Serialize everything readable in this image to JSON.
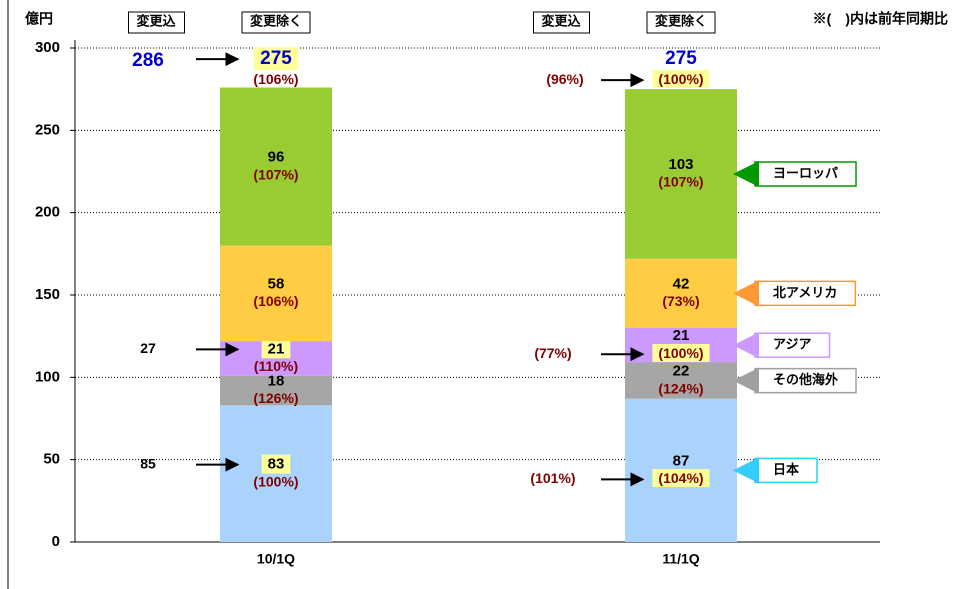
{
  "chart_data": {
    "type": "bar",
    "stacked": true,
    "y_unit": "億円",
    "note": "※(　)内は前年同期比",
    "column_headers": [
      "変更込",
      "変更除く"
    ],
    "categories": [
      "10/1Q",
      "11/1Q"
    ],
    "ylim": [
      0,
      300
    ],
    "yticks": [
      0,
      50,
      100,
      150,
      200,
      250,
      300
    ],
    "grid": true,
    "series": [
      {
        "name": "日本",
        "color": "#a9d3fb",
        "legend_color": "#33ccff",
        "values": [
          83,
          87
        ],
        "yoy": [
          "(100%)",
          "(104%)"
        ],
        "with_changes": [
          85,
          "(101%)"
        ]
      },
      {
        "name": "その他海外",
        "color": "#a6a6a6",
        "legend_color": "#a0a0a0",
        "values": [
          18,
          22
        ],
        "yoy": [
          "(126%)",
          "(124%)"
        ],
        "with_changes": [
          null,
          null
        ]
      },
      {
        "name": "アジア",
        "color": "#cc99ff",
        "legend_color": "#cc99ff",
        "values": [
          21,
          21
        ],
        "yoy": [
          "(110%)",
          "(100%)"
        ],
        "with_changes": [
          27,
          "(77%)"
        ]
      },
      {
        "name": "北アメリカ",
        "color": "#ffcc44",
        "legend_color": "#ff9933",
        "values": [
          58,
          42
        ],
        "yoy": [
          "(106%)",
          "(73%)"
        ],
        "with_changes": [
          null,
          null
        ]
      },
      {
        "name": "ヨーロッパ",
        "color": "#99cc33",
        "legend_color": "#009900",
        "values": [
          96,
          103
        ],
        "yoy": [
          "(107%)",
          "(107%)"
        ],
        "with_changes": [
          null,
          null
        ]
      }
    ],
    "totals": {
      "values": [
        275,
        275
      ],
      "yoy": [
        "(106%)",
        "(100%)"
      ],
      "with_changes": [
        286,
        "(96%)"
      ]
    }
  }
}
